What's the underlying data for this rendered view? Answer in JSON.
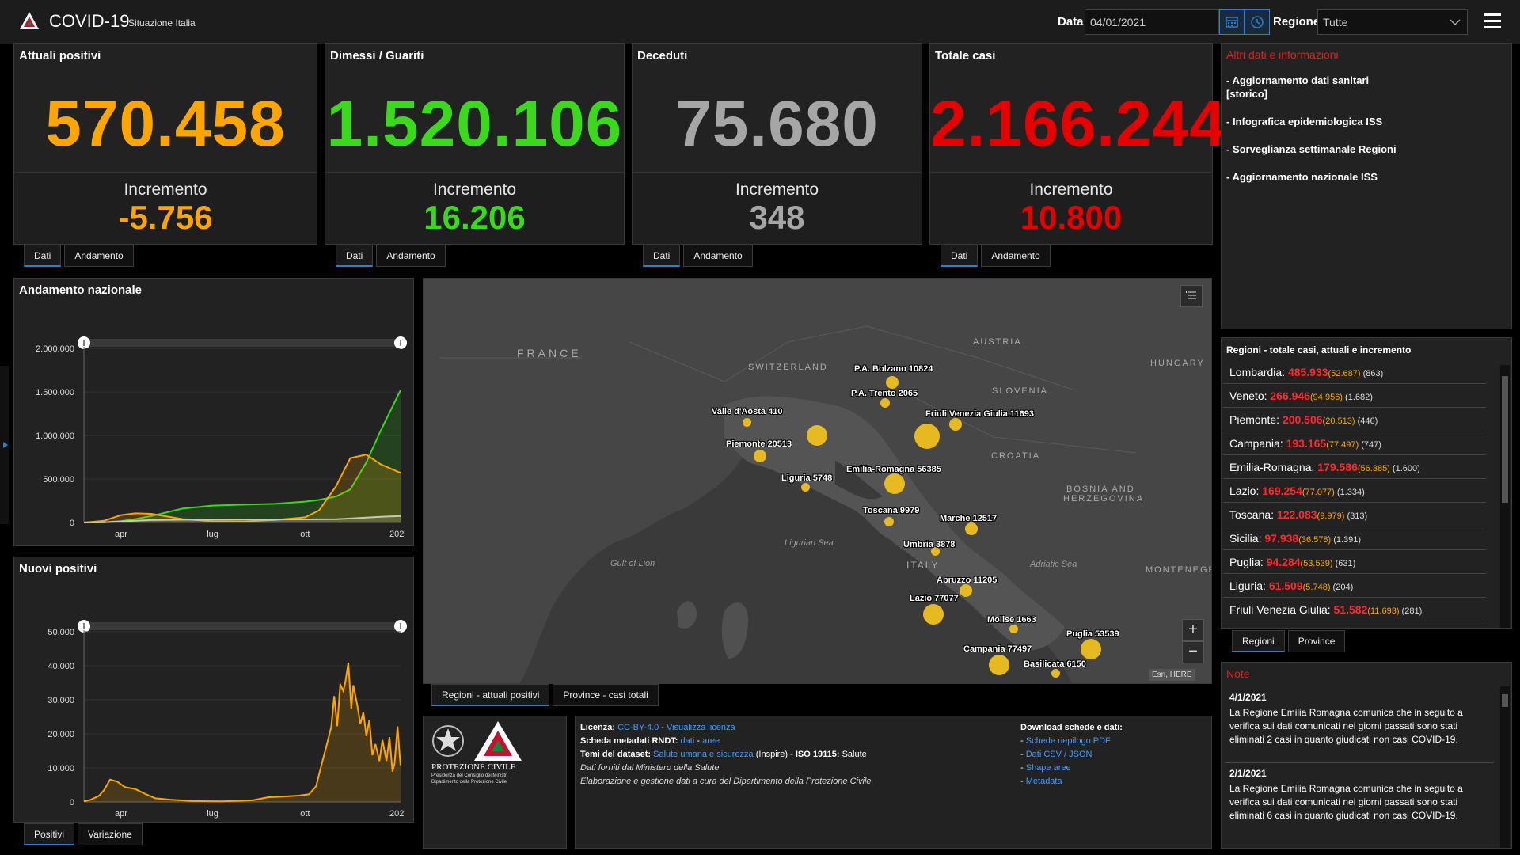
{
  "header": {
    "title": "COVID-19",
    "subtitle": "Situazione Italia",
    "date_label": "Data",
    "date_value": "04/01/2021",
    "region_label": "Regione",
    "region_value": "Tutte"
  },
  "kpis": [
    {
      "title": "Attuali positivi",
      "value": "570.458",
      "inc_label": "Incremento",
      "inc": "-5.756",
      "color": "#ffa500"
    },
    {
      "title": "Dimessi / Guariti",
      "value": "1.520.106",
      "inc_label": "Incremento",
      "inc": "16.206",
      "color": "#3ad91c"
    },
    {
      "title": "Deceduti",
      "value": "75.680",
      "inc_label": "Incremento",
      "inc": "348",
      "color": "#a6a6a6"
    },
    {
      "title": "Totale casi",
      "value": "2.166.244",
      "inc_label": "Incremento",
      "inc": "10.800",
      "color": "#e60000"
    }
  ],
  "kpi_tabs": {
    "dati": "Dati",
    "andamento": "Andamento"
  },
  "info": {
    "title": "Altri dati e informazioni",
    "items": [
      "- Aggiornamento dati sanitari\n  [storico]",
      "- Infografica epidemiologica ISS",
      "- Sorveglianza settimanale Regioni",
      "- Aggiornamento nazionale ISS"
    ]
  },
  "regions": {
    "title": "Regioni - totale casi, attuali e incremento",
    "rows": [
      {
        "name": "Lombardia:",
        "tot": "485.933",
        "att": "(52.687)",
        "inc": "(863)"
      },
      {
        "name": "Veneto:",
        "tot": "266.946",
        "att": "(94.956)",
        "inc": "(1.682)"
      },
      {
        "name": "Piemonte:",
        "tot": "200.506",
        "att": "(20.513)",
        "inc": "(446)"
      },
      {
        "name": "Campania:",
        "tot": "193.165",
        "att": "(77.497)",
        "inc": "(747)"
      },
      {
        "name": "Emilia-Romagna:",
        "tot": "179.586",
        "att": "(56.385)",
        "inc": "(1.600)"
      },
      {
        "name": "Lazio:",
        "tot": "169.254",
        "att": "(77.077)",
        "inc": "(1.334)"
      },
      {
        "name": "Toscana:",
        "tot": "122.083",
        "att": "(9.979)",
        "inc": "(313)"
      },
      {
        "name": "Sicilia:",
        "tot": "97.938",
        "att": "(36.578)",
        "inc": "(1.391)"
      },
      {
        "name": "Puglia:",
        "tot": "94.284",
        "att": "(53.539)",
        "inc": "(631)"
      },
      {
        "name": "Liguria:",
        "tot": "61.509",
        "att": "(5.748)",
        "inc": "(204)"
      },
      {
        "name": "Friuli Venezia Giulia:",
        "tot": "51.582",
        "att": "(11.693)",
        "inc": "(281)"
      }
    ],
    "tabs": [
      "Regioni",
      "Province"
    ]
  },
  "notes": {
    "title": "Note",
    "items": [
      {
        "date": "4/1/2021",
        "text": "La Regione Emilia Romagna comunica che in seguito a verifica sui dati comunicati nei giorni passati sono stati eliminati 2 casi in quanto giudicati non casi COVID-19."
      },
      {
        "date": "2/1/2021",
        "text": "La Regione Emilia Romagna comunica che in seguito a verifica sui dati comunicati nei giorni passati sono stati eliminati 6 casi in quanto giudicati non casi COVID-19."
      }
    ]
  },
  "map": {
    "countries": [
      "FRANCE",
      "SWITZERLAND",
      "AUSTRIA",
      "HUNGARY",
      "SLOVENIA",
      "CROATIA",
      "BOSNIA AND",
      "HERZEGOVINA",
      "ITALY",
      "MONTENEGRO"
    ],
    "seas": [
      "Ligurian Sea",
      "Gulf of Lion",
      "Adriatic Sea"
    ],
    "bubbles": [
      {
        "label": "P.A. Bolzano 10824"
      },
      {
        "label": "P.A. Trento 2065"
      },
      {
        "label": "Valle d'Aosta 410"
      },
      {
        "label": "Piemonte 20513"
      },
      {
        "label": "Friuli Venezia Giulia 11693"
      },
      {
        "label": "Emilia-Romagna 56385"
      },
      {
        "label": "Liguria 5748"
      },
      {
        "label": "Toscana 9979"
      },
      {
        "label": "Marche 12517"
      },
      {
        "label": "Umbria 3878"
      },
      {
        "label": "Abruzzo 11205"
      },
      {
        "label": "Lazio 77077"
      },
      {
        "label": "Molise 1663"
      },
      {
        "label": "Puglia 53539"
      },
      {
        "label": "Campania 77497"
      },
      {
        "label": "Basilicata 6150"
      },
      {
        "label": ""
      },
      {
        "label": ""
      }
    ],
    "attribution": "Esri, HERE",
    "tabs": [
      "Regioni - attuali positivi",
      "Province - casi totali"
    ]
  },
  "license": {
    "licenza_label": "Licenza:",
    "licenza_value": "CC-BY-4.0",
    "licenza_sep": " - ",
    "licenza_link": "Visualizza licenza",
    "metadati_label": "Scheda metadati RNDT:",
    "metadati_a": "dati",
    "metadati_sep": " - ",
    "metadati_b": "aree",
    "temi_label": "Temi del dataset:",
    "temi_link": "Salute umana e sicurezza",
    "temi_rest": " (Inspire) - ",
    "iso_label": "ISO 19115:",
    "iso_value": " Salute",
    "line4": "Dati forniti dal Ministero della Salute",
    "line5": "Elaborazione e gestione dati a cura del Dipartimento della Protezione Civile",
    "download_title": "Download schede e dati:",
    "downloads": [
      "Schede riepilogo PDF",
      "Dati CSV / JSON",
      "Shape aree",
      "Metadata"
    ],
    "dash": "- ",
    "logo_title": "PROTEZIONE CIVILE",
    "logo_sub1": "Presidenza del Consiglio dei Ministri",
    "logo_sub2": "Dipartimento della Protezione Civile"
  },
  "chart_data": [
    {
      "type": "area",
      "title": "Andamento nazionale",
      "x_ticks": [
        "apr",
        "lug",
        "ott",
        "202'"
      ],
      "y_ticks": [
        "0",
        "500.000",
        "1.000.000",
        "1.500.000",
        "2.000.000"
      ],
      "ylim": [
        0,
        2000000
      ],
      "x": [
        "2020-02-24",
        "2020-03-15",
        "2020-04-01",
        "2020-04-15",
        "2020-05-01",
        "2020-06-01",
        "2020-07-01",
        "2020-08-01",
        "2020-09-01",
        "2020-10-01",
        "2020-10-15",
        "2020-11-01",
        "2020-11-15",
        "2020-12-01",
        "2020-12-15",
        "2021-01-04"
      ],
      "series": [
        {
          "name": "Dimessi / Guariti",
          "color": "#3ad91c",
          "values": [
            0,
            3000,
            16000,
            40000,
            75000,
            160000,
            195000,
            205000,
            215000,
            240000,
            260000,
            300000,
            380000,
            690000,
            1050000,
            1520000
          ]
        },
        {
          "name": "Attuali positivi",
          "color": "#ffa500",
          "values": [
            200,
            20000,
            85000,
            105000,
            100000,
            40000,
            15000,
            13000,
            30000,
            60000,
            140000,
            420000,
            740000,
            780000,
            670000,
            570000
          ]
        },
        {
          "name": "Deceduti",
          "color": "#c8c8b8",
          "values": [
            7,
            1800,
            13000,
            21000,
            28000,
            33000,
            34800,
            35200,
            35500,
            36000,
            37000,
            39000,
            46000,
            56000,
            66000,
            75700
          ]
        }
      ]
    },
    {
      "type": "area",
      "title": "Nuovi positivi",
      "x_ticks": [
        "apr",
        "lug",
        "ott",
        "202'"
      ],
      "y_ticks": [
        "0",
        "10.000",
        "20.000",
        "30.000",
        "40.000",
        "50.000"
      ],
      "ylim": [
        0,
        50000
      ],
      "x": [
        "2020-02-24",
        "2020-03-01",
        "2020-03-10",
        "2020-03-15",
        "2020-03-21",
        "2020-03-28",
        "2020-04-05",
        "2020-04-15",
        "2020-04-25",
        "2020-05-05",
        "2020-05-20",
        "2020-06-10",
        "2020-07-10",
        "2020-08-10",
        "2020-08-25",
        "2020-09-10",
        "2020-09-25",
        "2020-10-05",
        "2020-10-12",
        "2020-10-18",
        "2020-10-22",
        "2020-10-27",
        "2020-10-30",
        "2020-11-02",
        "2020-11-05",
        "2020-11-08",
        "2020-11-10",
        "2020-11-13",
        "2020-11-16",
        "2020-11-18",
        "2020-11-22",
        "2020-11-25",
        "2020-11-28",
        "2020-12-01",
        "2020-12-04",
        "2020-12-07",
        "2020-12-10",
        "2020-12-14",
        "2020-12-17",
        "2020-12-21",
        "2020-12-24",
        "2020-12-27",
        "2020-12-29",
        "2021-01-01",
        "2021-01-03",
        "2021-01-04"
      ],
      "series": [
        {
          "name": "Nuovi positivi",
          "color": "#ffa500",
          "values": [
            221,
            566,
            1797,
            3497,
            6557,
            5974,
            4316,
            3786,
            2357,
            1075,
            665,
            283,
            169,
            481,
            1367,
            1597,
            1869,
            2257,
            4619,
            11705,
            16079,
            21994,
            31084,
            22253,
            34505,
            32616,
            35098,
            40902,
            27354,
            34283,
            28337,
            22930,
            26323,
            19350,
            24099,
            13720,
            16999,
            12030,
            18236,
            12030,
            19037,
            8913,
            11212,
            22211,
            14245,
            10800
          ]
        }
      ]
    }
  ]
}
